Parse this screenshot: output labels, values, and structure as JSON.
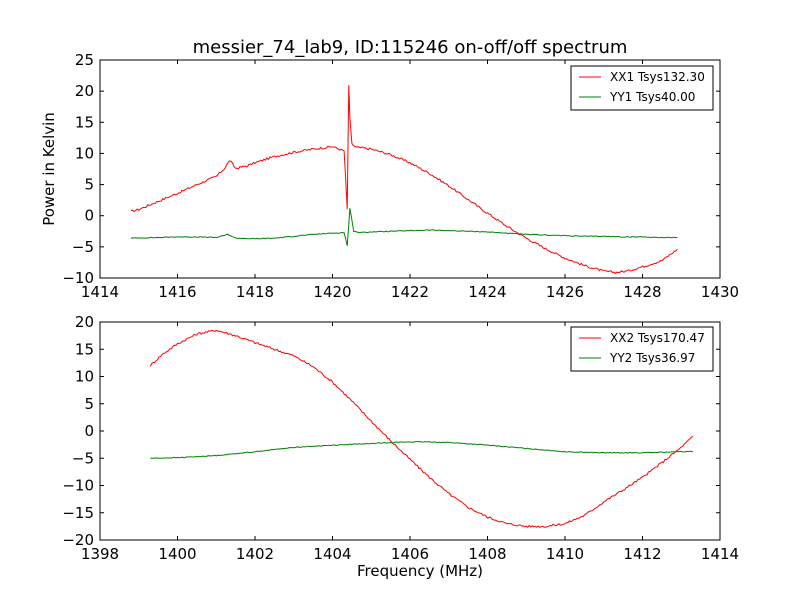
{
  "figure": {
    "title": "messier_74_lab9, ID:115246 on-off/off spectrum",
    "colors": {
      "xx": "#ff0000",
      "yy": "#008000"
    }
  },
  "chart_data": [
    {
      "type": "line",
      "title": "messier_74_lab9, ID:115246 on-off/off spectrum",
      "xlabel": "",
      "ylabel": "Power in Kelvin",
      "xlim": [
        1414,
        1430
      ],
      "ylim": [
        -10,
        25
      ],
      "xticks": [
        1414,
        1416,
        1418,
        1420,
        1422,
        1424,
        1426,
        1428,
        1430
      ],
      "yticks": [
        -10,
        -5,
        0,
        5,
        10,
        15,
        20,
        25
      ],
      "grid": false,
      "legend": "top-right",
      "series": [
        {
          "name": "XX1 Tsys132.30",
          "color": "#ff0000",
          "x": [
            1414.8,
            1415.0,
            1415.5,
            1416.0,
            1416.5,
            1417.0,
            1417.2,
            1417.35,
            1417.5,
            1417.8,
            1418.0,
            1418.5,
            1419.0,
            1419.5,
            1420.0,
            1420.3,
            1420.38,
            1420.42,
            1420.45,
            1420.5,
            1420.6,
            1421.0,
            1421.5,
            1422.0,
            1422.5,
            1423.0,
            1423.5,
            1424.0,
            1424.5,
            1425.0,
            1425.5,
            1426.0,
            1426.5,
            1427.0,
            1427.3,
            1427.6,
            1428.0,
            1428.5,
            1428.9
          ],
          "y": [
            0.7,
            1.0,
            2.3,
            3.6,
            5.0,
            6.3,
            7.5,
            8.9,
            7.6,
            8.0,
            8.5,
            9.5,
            10.2,
            10.7,
            11.1,
            10.4,
            1.0,
            21.0,
            15.5,
            11.5,
            11.0,
            10.7,
            9.8,
            8.5,
            6.8,
            4.8,
            2.6,
            0.4,
            -1.7,
            -3.6,
            -5.3,
            -6.8,
            -8.0,
            -8.9,
            -9.1,
            -8.9,
            -8.2,
            -7.2,
            -5.4
          ]
        },
        {
          "name": "YY1 Tsys40.00",
          "color": "#008000",
          "x": [
            1414.8,
            1415.5,
            1416.0,
            1416.5,
            1417.0,
            1417.3,
            1417.5,
            1418.0,
            1418.5,
            1419.0,
            1419.5,
            1420.0,
            1420.3,
            1420.38,
            1420.45,
            1420.55,
            1420.7,
            1421.0,
            1421.5,
            1422.0,
            1422.5,
            1423.0,
            1423.5,
            1424.0,
            1424.5,
            1425.0,
            1425.5,
            1426.0,
            1426.5,
            1427.0,
            1427.5,
            1428.0,
            1428.5,
            1428.9
          ],
          "y": [
            -3.6,
            -3.5,
            -3.4,
            -3.4,
            -3.5,
            -3.0,
            -3.6,
            -3.7,
            -3.6,
            -3.3,
            -3.0,
            -2.8,
            -2.7,
            -4.8,
            1.2,
            -2.5,
            -2.7,
            -2.6,
            -2.5,
            -2.4,
            -2.3,
            -2.4,
            -2.5,
            -2.6,
            -2.8,
            -3.0,
            -3.1,
            -3.2,
            -3.3,
            -3.3,
            -3.4,
            -3.4,
            -3.5,
            -3.5
          ]
        }
      ]
    },
    {
      "type": "line",
      "title": "",
      "xlabel": "Frequency (MHz)",
      "ylabel": "",
      "xlim": [
        1398,
        1414
      ],
      "ylim": [
        -20,
        20
      ],
      "xticks": [
        1398,
        1400,
        1402,
        1404,
        1406,
        1408,
        1410,
        1412,
        1414
      ],
      "yticks": [
        -20,
        -15,
        -10,
        -5,
        0,
        5,
        10,
        15,
        20
      ],
      "grid": false,
      "legend": "top-right",
      "series": [
        {
          "name": "XX2 Tsys170.47",
          "color": "#ff0000",
          "x": [
            1399.3,
            1399.6,
            1400.0,
            1400.5,
            1401.0,
            1401.5,
            1402.0,
            1402.5,
            1403.0,
            1403.5,
            1404.0,
            1404.5,
            1405.0,
            1405.5,
            1406.0,
            1406.5,
            1407.0,
            1407.5,
            1408.0,
            1408.5,
            1409.0,
            1409.5,
            1410.0,
            1410.5,
            1411.0,
            1411.5,
            1412.0,
            1412.5,
            1413.0,
            1413.3
          ],
          "y": [
            12.0,
            14.0,
            16.0,
            17.8,
            18.5,
            17.5,
            16.2,
            15.0,
            13.8,
            11.8,
            9.0,
            5.5,
            1.8,
            -1.8,
            -5.2,
            -8.5,
            -11.5,
            -14.0,
            -15.8,
            -17.0,
            -17.5,
            -17.5,
            -17.0,
            -15.5,
            -13.0,
            -10.8,
            -8.5,
            -5.8,
            -3.0,
            -1.0
          ]
        },
        {
          "name": "YY2 Tsys36.97",
          "color": "#008000",
          "x": [
            1399.3,
            1400.0,
            1401.0,
            1402.0,
            1403.0,
            1404.0,
            1405.0,
            1405.5,
            1406.0,
            1406.5,
            1407.0,
            1408.0,
            1409.0,
            1410.0,
            1411.0,
            1411.5,
            1412.0,
            1412.5,
            1413.0,
            1413.3
          ],
          "y": [
            -5.0,
            -4.9,
            -4.5,
            -3.8,
            -3.0,
            -2.6,
            -2.3,
            -2.1,
            -2.0,
            -2.0,
            -2.1,
            -2.6,
            -3.2,
            -3.8,
            -4.0,
            -4.0,
            -4.0,
            -3.9,
            -3.8,
            -3.8
          ]
        }
      ]
    }
  ]
}
